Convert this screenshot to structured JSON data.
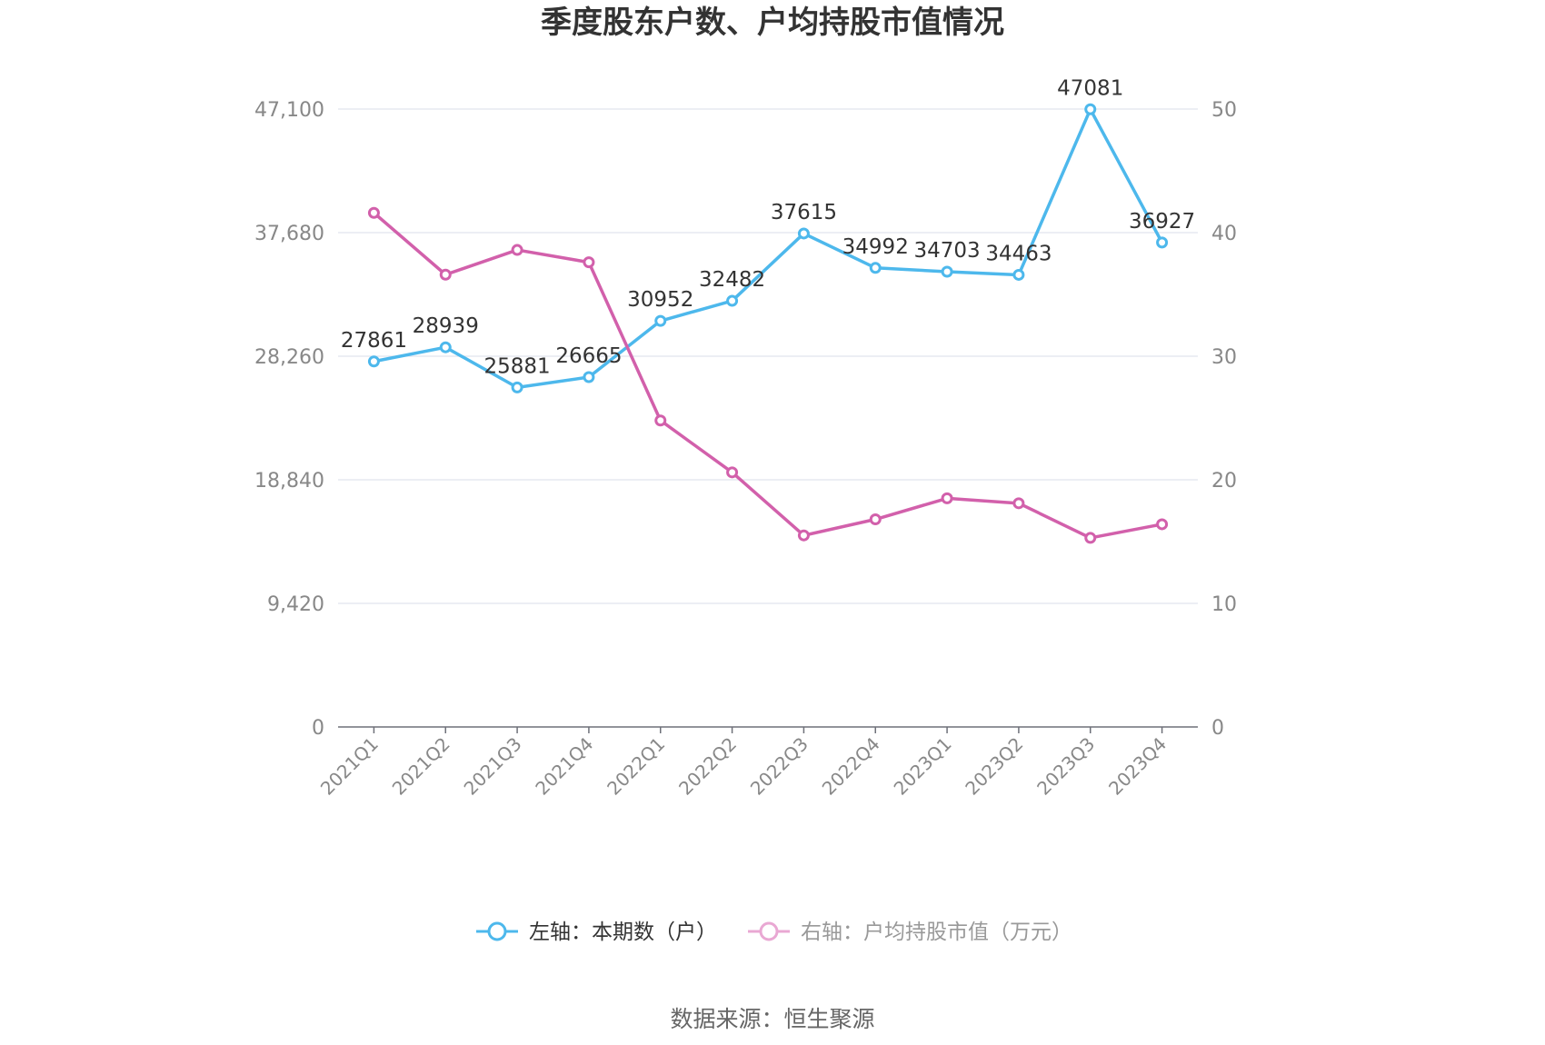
{
  "chart_data": {
    "type": "line",
    "title": "季度股东户数、户均持股市值情况",
    "categories": [
      "2021Q1",
      "2021Q2",
      "2021Q3",
      "2021Q4",
      "2022Q1",
      "2022Q2",
      "2022Q3",
      "2022Q4",
      "2023Q1",
      "2023Q2",
      "2023Q3",
      "2023Q4"
    ],
    "y_left": {
      "ticks": [
        "0",
        "9,420",
        "18,840",
        "28,260",
        "37,680",
        "47,100"
      ],
      "ylim": [
        0,
        47100
      ]
    },
    "y_right": {
      "ticks": [
        "0",
        "10",
        "20",
        "30",
        "40",
        "50"
      ],
      "ylim": [
        0,
        50
      ]
    },
    "series": [
      {
        "name": "左轴：本期数（户）",
        "axis": "left",
        "color": "#4db8ec",
        "values": [
          27861,
          28939,
          25881,
          26665,
          30952,
          32482,
          37615,
          34992,
          34703,
          34463,
          47081,
          36927
        ],
        "labels": [
          "27861",
          "28939",
          "25881",
          "26665",
          "30952",
          "32482",
          "37615",
          "34992",
          "34703",
          "34463",
          "47081",
          "36927"
        ]
      },
      {
        "name": "右轴：户均持股市值（万元）",
        "axis": "right",
        "color": "#d260ab",
        "values": [
          41.6,
          36.6,
          38.6,
          37.6,
          24.8,
          20.6,
          15.5,
          16.8,
          18.5,
          18.1,
          15.3,
          16.4
        ]
      }
    ],
    "grid": true,
    "legend_position": "bottom"
  },
  "source_text": "数据来源：恒生聚源",
  "legend_colors": {
    "series_0": "#4db8ec",
    "series_1_muted": "#e9a8d3"
  }
}
